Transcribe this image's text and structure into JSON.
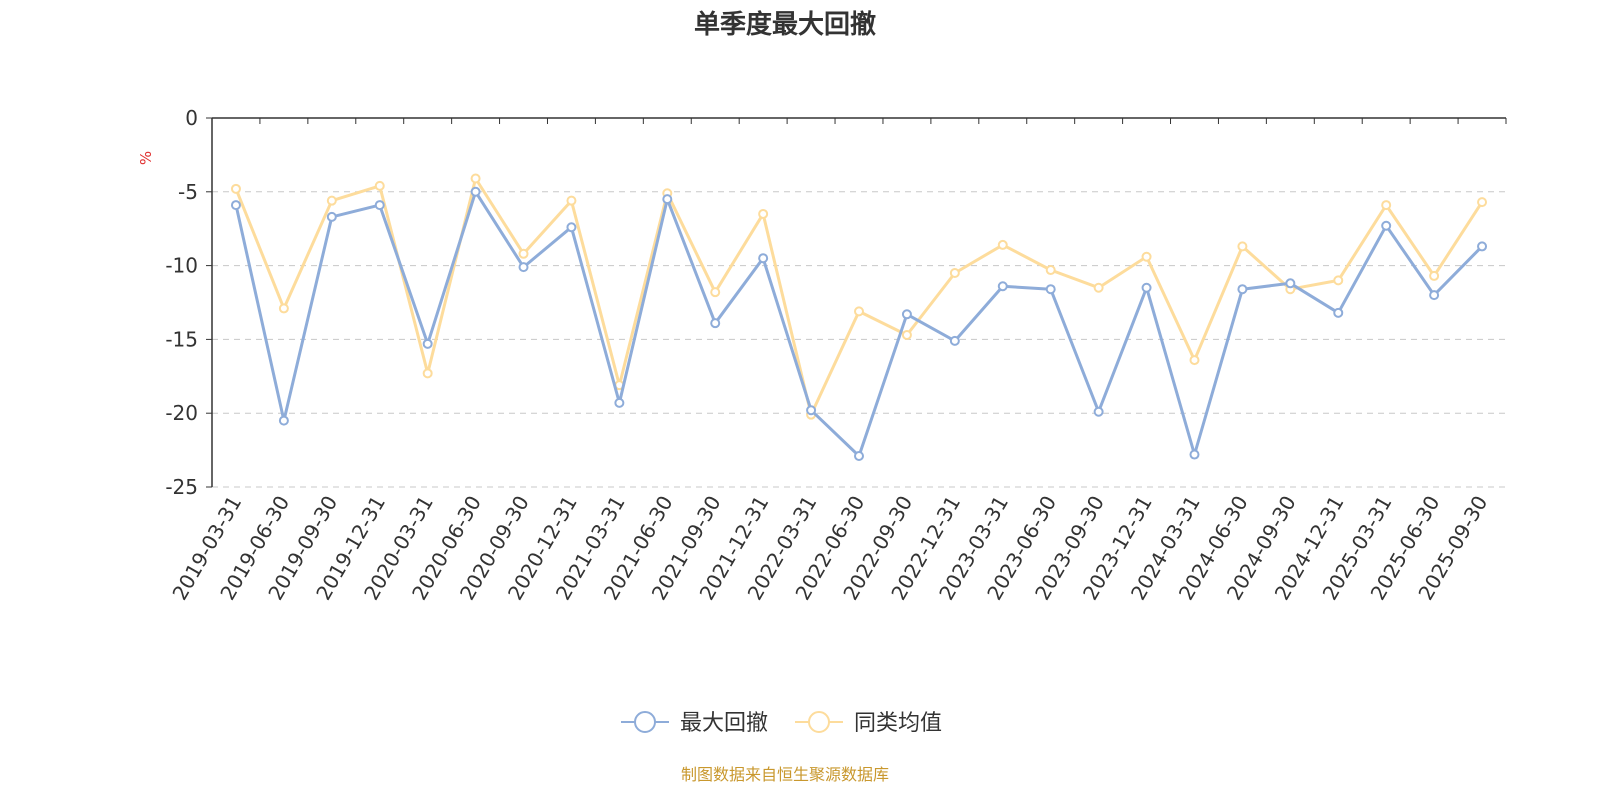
{
  "chart_data": {
    "type": "line",
    "title": "单季度最大回撤",
    "ylabel": "%",
    "xlabel": "",
    "ylim": [
      -25,
      0
    ],
    "yticks": [
      0,
      -5,
      -10,
      -15,
      -20,
      -25
    ],
    "grid": true,
    "legend_position": "bottom-center",
    "categories": [
      "2019-03-31",
      "2019-06-30",
      "2019-09-30",
      "2019-12-31",
      "2020-03-31",
      "2020-06-30",
      "2020-09-30",
      "2020-12-31",
      "2021-03-31",
      "2021-06-30",
      "2021-09-30",
      "2021-12-31",
      "2022-03-31",
      "2022-06-30",
      "2022-09-30",
      "2022-12-31",
      "2023-03-31",
      "2023-06-30",
      "2023-09-30",
      "2023-12-31",
      "2024-03-31",
      "2024-06-30",
      "2024-09-30",
      "2024-12-31",
      "2025-03-31",
      "2025-06-30",
      "2025-09-30"
    ],
    "series": [
      {
        "name": "最大回撤",
        "color": "#8eacd9",
        "values": [
          -5.9,
          -20.5,
          -6.7,
          -5.9,
          -15.3,
          -5.0,
          -10.1,
          -7.4,
          -19.3,
          -5.5,
          -13.9,
          -9.5,
          -19.8,
          -22.9,
          -13.3,
          -15.1,
          -11.4,
          -11.6,
          -19.9,
          -11.5,
          -22.8,
          -11.6,
          -11.2,
          -13.2,
          -7.3,
          -12.0,
          -8.7
        ]
      },
      {
        "name": "同类均值",
        "color": "#fddc9c",
        "values": [
          -4.8,
          -12.9,
          -5.6,
          -4.6,
          -17.3,
          -4.1,
          -9.2,
          -5.6,
          -18.1,
          -5.1,
          -11.8,
          -6.5,
          -20.1,
          -13.1,
          -14.7,
          -10.5,
          -8.6,
          -10.3,
          -11.5,
          -9.4,
          -16.4,
          -8.7,
          -11.6,
          -11.0,
          -5.9,
          -10.7,
          -5.7
        ]
      }
    ]
  },
  "footer": {
    "source": "制图数据来自恒生聚源数据库"
  },
  "colors": {
    "title": "#333333",
    "axis": "#333333",
    "unit": "#e03030",
    "grid": "#c8c8c8",
    "source": "#c9982e"
  }
}
